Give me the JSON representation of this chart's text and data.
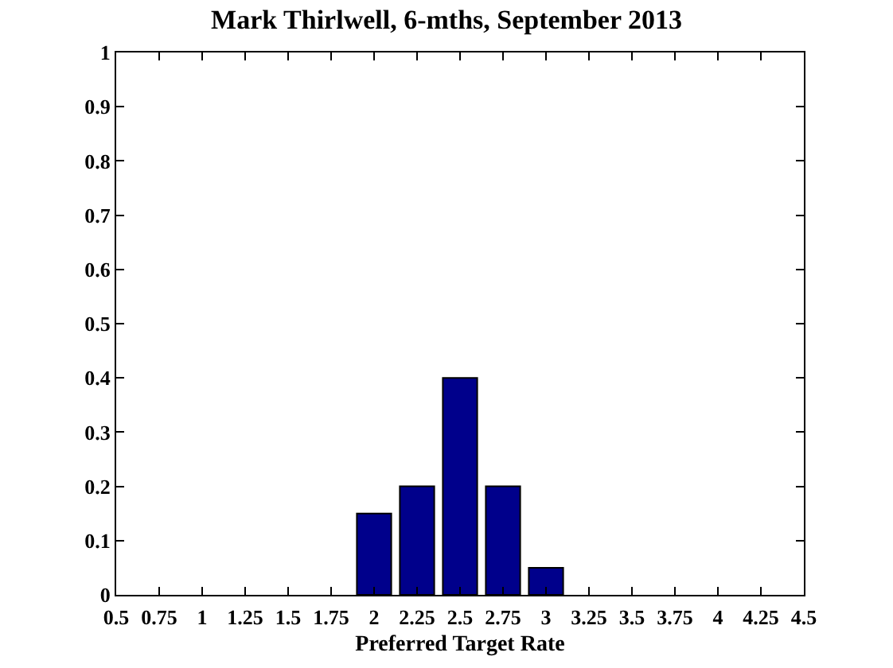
{
  "chart_data": {
    "type": "bar",
    "title": "Mark Thirlwell, 6-mths, September 2013",
    "xlabel": "Preferred Target Rate",
    "x": [
      2,
      2.25,
      2.5,
      2.75,
      3
    ],
    "values": [
      0.15,
      0.2,
      0.4,
      0.2,
      0.05
    ],
    "color": "#00008b",
    "xlim": [
      0.5,
      4.5
    ],
    "xticks": [
      0.5,
      0.75,
      1,
      1.25,
      1.5,
      1.75,
      2,
      2.25,
      2.5,
      2.75,
      3,
      3.25,
      3.5,
      3.75,
      4,
      4.25,
      4.5
    ],
    "ylim": [
      0,
      1
    ],
    "yticks": [
      0,
      0.1,
      0.2,
      0.3,
      0.4,
      0.5,
      0.6,
      0.7,
      0.8,
      0.9,
      1
    ],
    "grid": false
  }
}
